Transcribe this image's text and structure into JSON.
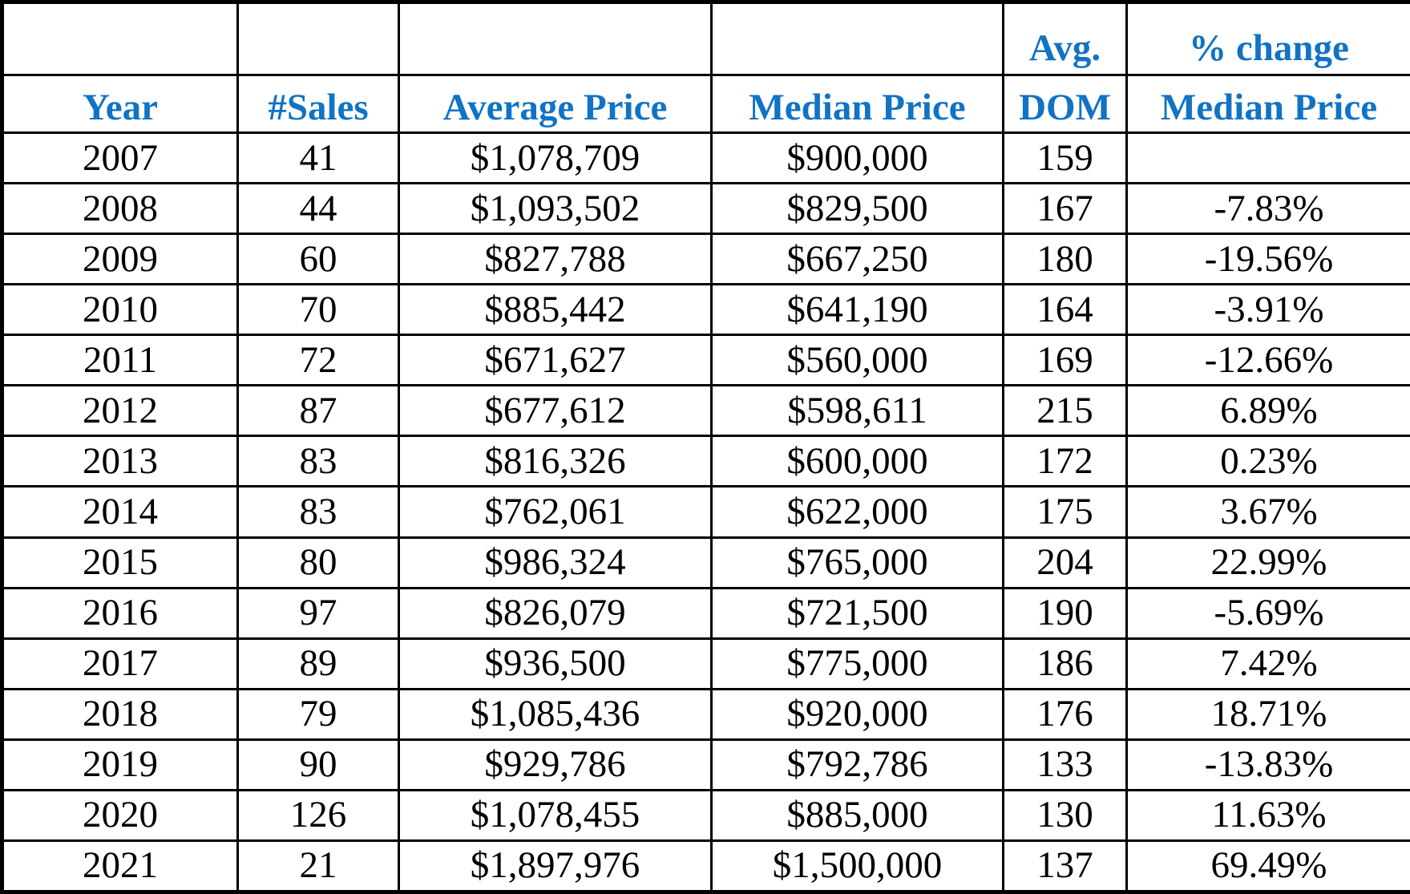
{
  "chart_data": {
    "type": "table",
    "header_top": [
      "",
      "",
      "",
      "",
      "Avg.",
      "% change"
    ],
    "header_bottom": [
      "Year",
      "#Sales",
      "Average Price",
      "Median Price",
      "DOM",
      "Median Price"
    ],
    "rows": [
      [
        "2007",
        "41",
        "$1,078,709",
        "$900,000",
        "159",
        ""
      ],
      [
        "2008",
        "44",
        "$1,093,502",
        "$829,500",
        "167",
        "-7.83%"
      ],
      [
        "2009",
        "60",
        "$827,788",
        "$667,250",
        "180",
        "-19.56%"
      ],
      [
        "2010",
        "70",
        "$885,442",
        "$641,190",
        "164",
        "-3.91%"
      ],
      [
        "2011",
        "72",
        "$671,627",
        "$560,000",
        "169",
        "-12.66%"
      ],
      [
        "2012",
        "87",
        "$677,612",
        "$598,611",
        "215",
        "6.89%"
      ],
      [
        "2013",
        "83",
        "$816,326",
        "$600,000",
        "172",
        "0.23%"
      ],
      [
        "2014",
        "83",
        "$762,061",
        "$622,000",
        "175",
        "3.67%"
      ],
      [
        "2015",
        "80",
        "$986,324",
        "$765,000",
        "204",
        "22.99%"
      ],
      [
        "2016",
        "97",
        "$826,079",
        "$721,500",
        "190",
        "-5.69%"
      ],
      [
        "2017",
        "89",
        "$936,500",
        "$775,000",
        "186",
        "7.42%"
      ],
      [
        "2018",
        "79",
        "$1,085,436",
        "$920,000",
        "176",
        "18.71%"
      ],
      [
        "2019",
        "90",
        "$929,786",
        "$792,786",
        "133",
        "-13.83%"
      ],
      [
        "2020",
        "126",
        "$1,078,455",
        "$885,000",
        "130",
        "11.63%"
      ],
      [
        "2021",
        "21",
        "$1,897,976",
        "$1,500,000",
        "137",
        "69.49%"
      ]
    ],
    "header_color": "#1173c4"
  }
}
